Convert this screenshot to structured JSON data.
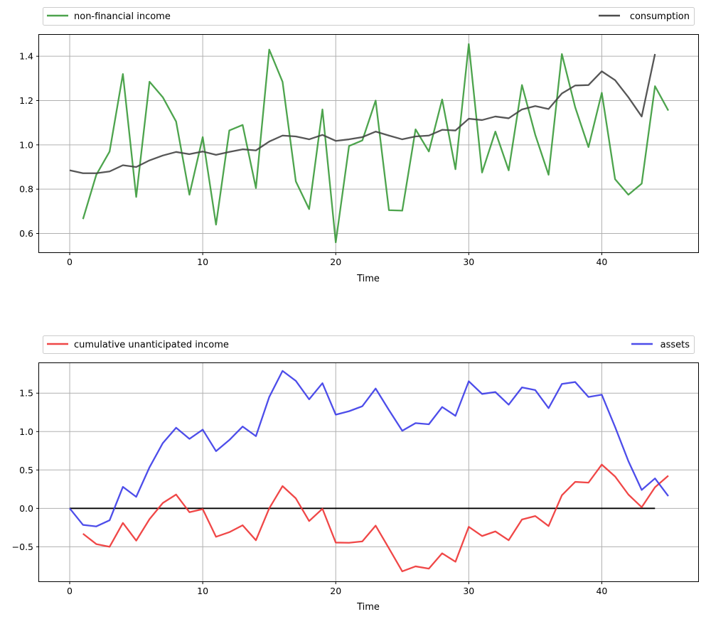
{
  "chart_data": [
    {
      "type": "line",
      "xlabel": "Time",
      "ylabel": "",
      "xlim": [
        -2.3,
        47.3
      ],
      "ylim": [
        0.515,
        1.5
      ],
      "xticks": [
        0,
        10,
        20,
        30,
        40
      ],
      "yticks": [
        0.6,
        0.8,
        1.0,
        1.2,
        1.4
      ],
      "ytick_labels": [
        "0.6",
        "0.8",
        "1.0",
        "1.2",
        "1.4"
      ],
      "grid": true,
      "legend_placement": "top, outside the axes",
      "series": [
        {
          "name": "non-financial income",
          "color": "#3a9a3a",
          "x_start": 1,
          "values": [
            0.665,
            0.865,
            0.97,
            1.32,
            0.765,
            1.285,
            1.215,
            1.105,
            0.775,
            1.035,
            0.64,
            1.065,
            1.09,
            0.805,
            1.43,
            1.285,
            0.835,
            0.71,
            1.16,
            0.56,
            0.995,
            1.02,
            1.2,
            0.705,
            0.703,
            1.07,
            0.97,
            1.205,
            0.89,
            1.455,
            0.875,
            1.06,
            0.885,
            1.27,
            1.045,
            0.865,
            1.41,
            1.17,
            0.99,
            1.235,
            0.845,
            0.775,
            0.825,
            1.265,
            1.155
          ]
        },
        {
          "name": "consumption",
          "color": "#444444",
          "x_start": 0,
          "values": [
            0.885,
            0.872,
            0.872,
            0.88,
            0.908,
            0.9,
            0.93,
            0.952,
            0.968,
            0.958,
            0.97,
            0.955,
            0.968,
            0.98,
            0.975,
            1.015,
            1.042,
            1.038,
            1.025,
            1.045,
            1.018,
            1.025,
            1.035,
            1.06,
            1.042,
            1.025,
            1.038,
            1.042,
            1.068,
            1.065,
            1.118,
            1.112,
            1.128,
            1.12,
            1.16,
            1.175,
            1.162,
            1.232,
            1.268,
            1.27,
            1.332,
            1.292,
            1.215,
            1.128,
            1.41
          ]
        }
      ]
    },
    {
      "type": "line",
      "xlabel": "Time",
      "ylabel": "",
      "xlim": [
        -2.3,
        47.3
      ],
      "ylim": [
        -0.95,
        1.9
      ],
      "xticks": [
        0,
        10,
        20,
        30,
        40
      ],
      "yticks": [
        -0.5,
        0.0,
        0.5,
        1.0,
        1.5
      ],
      "ytick_labels": [
        "−0.5",
        "0.0",
        "0.5",
        "1.0",
        "1.5"
      ],
      "grid": true,
      "legend_placement": "top, outside the axes",
      "zero_line": {
        "from": 0,
        "to": 44,
        "color": "#000000"
      },
      "series": [
        {
          "name": "cumulative unanticipated income",
          "color": "#ee3333",
          "x_start": 1,
          "values": [
            -0.33,
            -0.465,
            -0.5,
            -0.19,
            -0.42,
            -0.14,
            0.07,
            0.18,
            -0.05,
            -0.01,
            -0.37,
            -0.31,
            -0.22,
            -0.415,
            0.0,
            0.29,
            0.13,
            -0.165,
            -0.005,
            -0.445,
            -0.448,
            -0.43,
            -0.225,
            -0.52,
            -0.82,
            -0.755,
            -0.785,
            -0.585,
            -0.695,
            -0.24,
            -0.36,
            -0.3,
            -0.415,
            -0.145,
            -0.1,
            -0.23,
            0.17,
            0.345,
            0.335,
            0.57,
            0.415,
            0.18,
            0.015,
            0.275,
            0.425
          ]
        },
        {
          "name": "assets",
          "color": "#3a3ae8",
          "x_start": 0,
          "values": [
            0.0,
            -0.215,
            -0.235,
            -0.155,
            0.28,
            0.15,
            0.535,
            0.85,
            1.05,
            0.905,
            1.025,
            0.745,
            0.89,
            1.065,
            0.94,
            1.45,
            1.79,
            1.66,
            1.42,
            1.63,
            1.22,
            1.265,
            1.33,
            1.56,
            1.28,
            1.01,
            1.11,
            1.095,
            1.32,
            1.205,
            1.655,
            1.49,
            1.515,
            1.35,
            1.575,
            1.54,
            1.305,
            1.62,
            1.645,
            1.45,
            1.48,
            1.06,
            0.615,
            0.24,
            0.39,
            0.16
          ]
        }
      ]
    }
  ]
}
